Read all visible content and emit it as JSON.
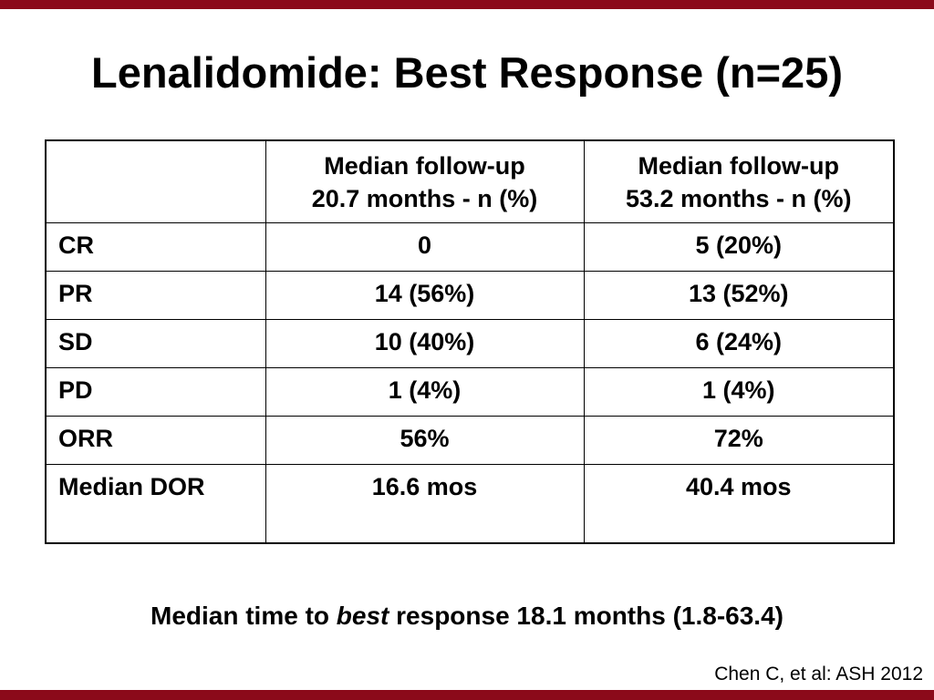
{
  "theme": {
    "accent_bar_color": "#8b0a1a"
  },
  "slide": {
    "title": "Lenalidomide:  Best Response (n=25)"
  },
  "table": {
    "corner_header": "",
    "columns": [
      {
        "line1": "Median follow-up",
        "line2": "20.7 months - n (%)"
      },
      {
        "line1": "Median follow-up",
        "line2": "53.2 months - n (%)"
      }
    ],
    "rows": [
      {
        "label": "CR",
        "values": [
          "0",
          "5 (20%)"
        ]
      },
      {
        "label": "PR",
        "values": [
          "14 (56%)",
          "13 (52%)"
        ]
      },
      {
        "label": "SD",
        "values": [
          "10 (40%)",
          "6 (24%)"
        ]
      },
      {
        "label": "PD",
        "values": [
          "1 (4%)",
          "1 (4%)"
        ]
      },
      {
        "label": "ORR",
        "values": [
          "56%",
          "72%"
        ]
      },
      {
        "label": "Median DOR",
        "values": [
          "16.6 mos",
          "40.4 mos"
        ]
      }
    ]
  },
  "footnote": {
    "prefix": "Median time to ",
    "emphasis": "best",
    "suffix": " response 18.1 months (1.8-63.4)"
  },
  "citation": "Chen C, et al: ASH 2012"
}
